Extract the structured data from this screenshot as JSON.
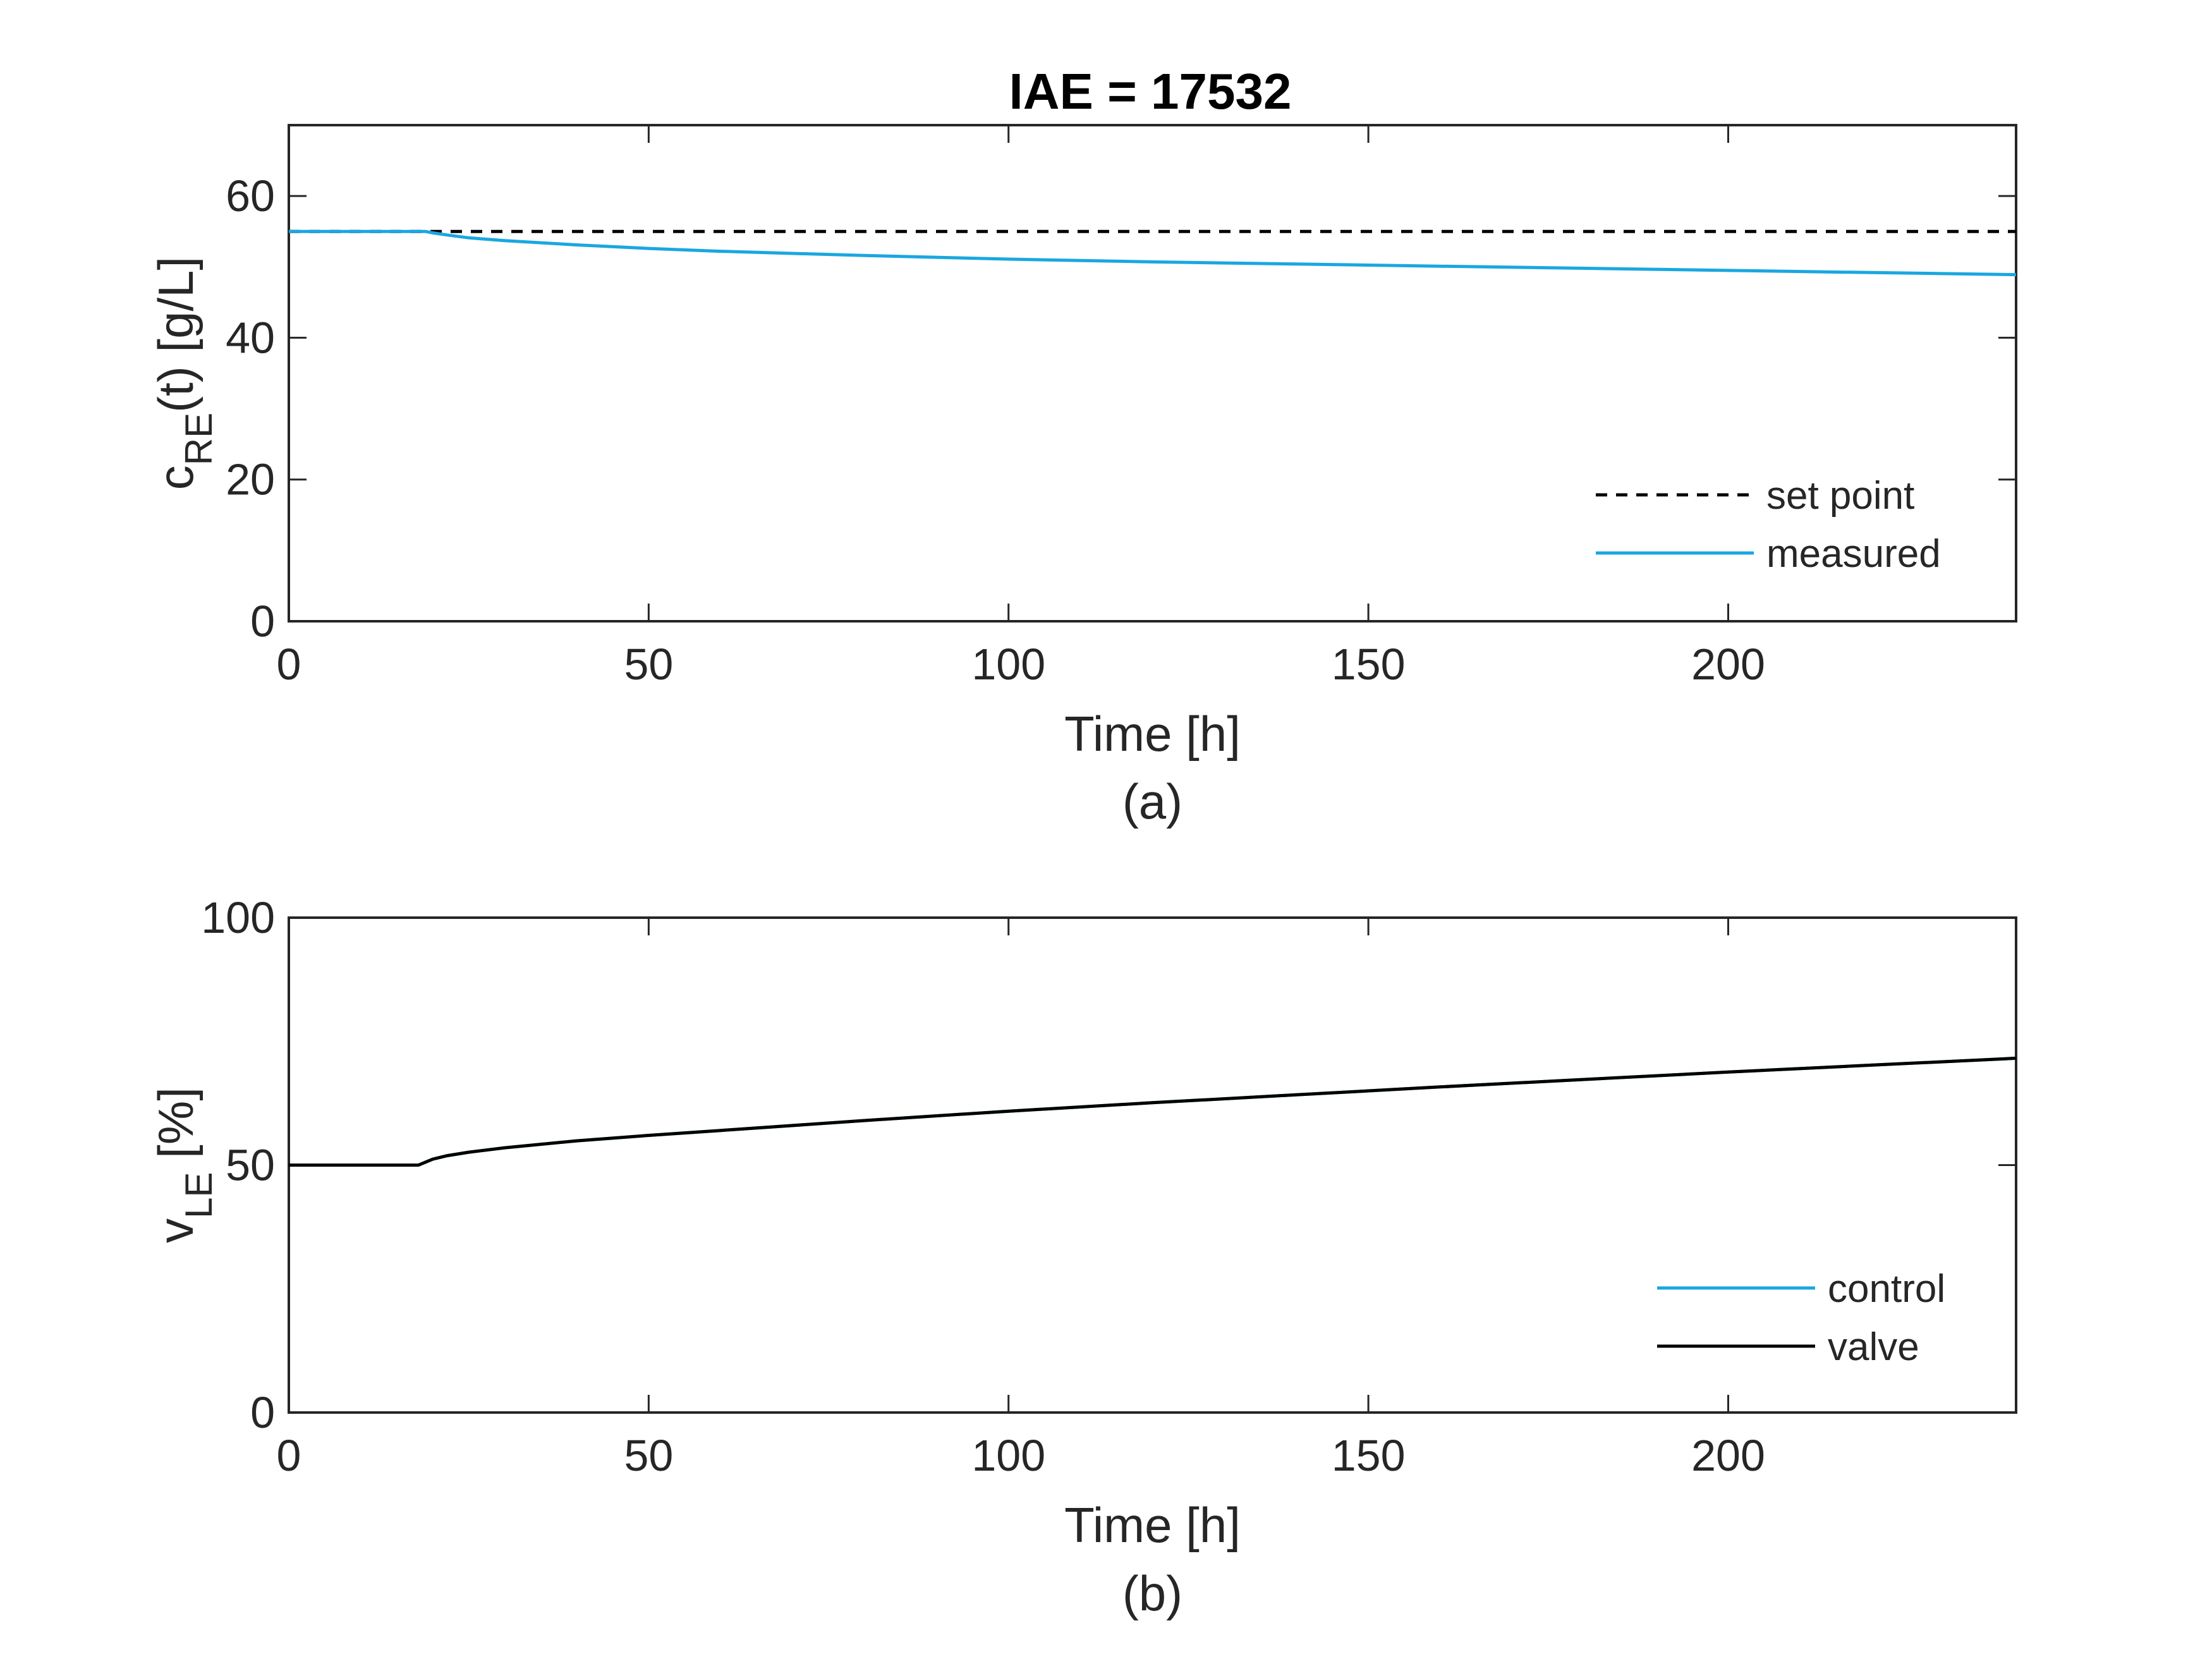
{
  "chart_data": [
    {
      "type": "line",
      "panel_label": "(a)",
      "title": "IAE = 17532",
      "xlabel": "Time [h]",
      "ylabel": {
        "base": "c",
        "sub": "RE",
        "rest": "(t) [g/L]"
      },
      "xlim": [
        0,
        240
      ],
      "ylim": [
        0,
        70
      ],
      "xticks": [
        0,
        50,
        100,
        150,
        200
      ],
      "yticks": [
        0,
        20,
        40,
        60
      ],
      "legend_position": "bottom-right",
      "grid": false,
      "series": [
        {
          "name": "set point",
          "style": "dashed",
          "color": "#000000",
          "x": [
            0,
            20,
            240
          ],
          "y": [
            55,
            55,
            55
          ]
        },
        {
          "name": "measured",
          "style": "solid",
          "color": "#1aa7e0",
          "x": [
            0,
            18,
            19,
            20,
            22,
            25,
            30,
            40,
            50,
            60,
            80,
            100,
            120,
            140,
            160,
            180,
            200,
            220,
            240
          ],
          "y": [
            55,
            55,
            55,
            54.8,
            54.5,
            54.1,
            53.7,
            53.1,
            52.6,
            52.2,
            51.6,
            51.1,
            50.7,
            50.4,
            50.1,
            49.8,
            49.5,
            49.2,
            48.9
          ]
        }
      ]
    },
    {
      "type": "line",
      "panel_label": "(b)",
      "title": "",
      "xlabel": "Time [h]",
      "ylabel": {
        "base": "v",
        "sub": "LE",
        "rest": " [%]"
      },
      "xlim": [
        0,
        240
      ],
      "ylim": [
        0,
        100
      ],
      "xticks": [
        0,
        50,
        100,
        150,
        200
      ],
      "yticks": [
        0,
        50,
        100
      ],
      "legend_position": "bottom-right",
      "grid": false,
      "series": [
        {
          "name": "control",
          "style": "solid",
          "color": "#1aa7e0",
          "x": [
            0,
            18,
            19,
            20,
            22,
            25,
            30,
            40,
            50,
            60,
            80,
            100,
            120,
            140,
            160,
            180,
            200,
            220,
            240
          ],
          "y": [
            50,
            50,
            50.6,
            51.2,
            51.9,
            52.6,
            53.5,
            54.9,
            56.0,
            57.0,
            59.0,
            60.9,
            62.6,
            64.2,
            65.8,
            67.3,
            68.8,
            70.2,
            71.6
          ]
        },
        {
          "name": "valve",
          "style": "solid",
          "color": "#000000",
          "x": [
            0,
            18,
            19,
            20,
            22,
            25,
            30,
            40,
            50,
            60,
            80,
            100,
            120,
            140,
            160,
            180,
            200,
            220,
            240
          ],
          "y": [
            50,
            50,
            50.6,
            51.2,
            51.9,
            52.6,
            53.5,
            54.9,
            56.0,
            57.0,
            59.0,
            60.9,
            62.6,
            64.2,
            65.8,
            67.3,
            68.8,
            70.2,
            71.6
          ]
        }
      ]
    }
  ]
}
